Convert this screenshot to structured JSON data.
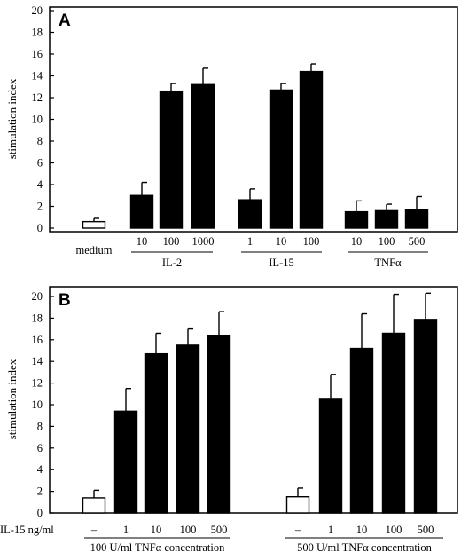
{
  "chart_data": [
    {
      "type": "bar",
      "panel_label": "A",
      "ylabel": "stimulation index",
      "ylim": [
        0,
        20
      ],
      "yticks": [
        0,
        2,
        4,
        6,
        8,
        10,
        12,
        14,
        16,
        18,
        20
      ],
      "bars": [
        {
          "label": "medium",
          "group": "",
          "value": 0.6,
          "error": 0.3,
          "fill": "white"
        },
        {
          "label": "10",
          "group": "IL-2",
          "value": 3.0,
          "error": 1.2,
          "fill": "black"
        },
        {
          "label": "100",
          "group": "IL-2",
          "value": 12.6,
          "error": 0.7,
          "fill": "black"
        },
        {
          "label": "1000",
          "group": "IL-2",
          "value": 13.2,
          "error": 1.5,
          "fill": "black"
        },
        {
          "label": "1",
          "group": "IL-15",
          "value": 2.6,
          "error": 1.0,
          "fill": "black"
        },
        {
          "label": "10",
          "group": "IL-15",
          "value": 12.7,
          "error": 0.6,
          "fill": "black"
        },
        {
          "label": "100",
          "group": "IL-15",
          "value": 14.4,
          "error": 0.7,
          "fill": "black"
        },
        {
          "label": "10",
          "group": "TNFα",
          "value": 1.5,
          "error": 1.0,
          "fill": "black"
        },
        {
          "label": "100",
          "group": "TNFα",
          "value": 1.6,
          "error": 0.6,
          "fill": "black"
        },
        {
          "label": "500",
          "group": "TNFα",
          "value": 1.7,
          "error": 1.2,
          "fill": "black"
        }
      ],
      "groups": [
        "IL-2",
        "IL-15",
        "TNFα"
      ]
    },
    {
      "type": "bar",
      "panel_label": "B",
      "ylabel": "stimulation index",
      "ylim": [
        0,
        20
      ],
      "yticks": [
        0,
        2,
        4,
        6,
        8,
        10,
        12,
        14,
        16,
        18,
        20
      ],
      "xlabel_prefix": "IL-15  ng/ml",
      "bars": [
        {
          "label": "–",
          "group": "100 U/ml TNFα concentration",
          "value": 1.4,
          "error": 0.7,
          "fill": "white"
        },
        {
          "label": "1",
          "group": "100 U/ml TNFα concentration",
          "value": 9.4,
          "error": 2.1,
          "fill": "black"
        },
        {
          "label": "10",
          "group": "100 U/ml TNFα concentration",
          "value": 14.7,
          "error": 1.9,
          "fill": "black"
        },
        {
          "label": "100",
          "group": "100 U/ml TNFα concentration",
          "value": 15.5,
          "error": 1.5,
          "fill": "black"
        },
        {
          "label": "500",
          "group": "100 U/ml TNFα concentration",
          "value": 16.4,
          "error": 2.2,
          "fill": "black"
        },
        {
          "label": "–",
          "group": "500 U/ml TNFα concentration",
          "value": 1.5,
          "error": 0.8,
          "fill": "white"
        },
        {
          "label": "1",
          "group": "500 U/ml TNFα concentration",
          "value": 10.5,
          "error": 2.3,
          "fill": "black"
        },
        {
          "label": "10",
          "group": "500 U/ml TNFα concentration",
          "value": 15.2,
          "error": 3.2,
          "fill": "black"
        },
        {
          "label": "100",
          "group": "500 U/ml TNFα concentration",
          "value": 16.6,
          "error": 3.6,
          "fill": "black"
        },
        {
          "label": "500",
          "group": "500 U/ml TNFα concentration",
          "value": 17.8,
          "error": 2.5,
          "fill": "black"
        }
      ],
      "groups": [
        "100 U/ml TNFα concentration",
        "500 U/ml TNFα concentration"
      ]
    }
  ]
}
